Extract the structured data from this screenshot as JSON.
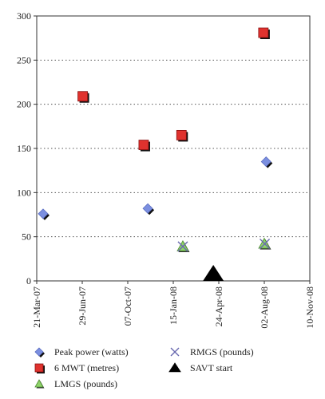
{
  "chart_data": {
    "type": "scatter",
    "title": "",
    "xlabel": "",
    "ylabel": "",
    "ylim": [
      0,
      300
    ],
    "yticks": [
      0,
      50,
      100,
      150,
      200,
      250,
      300
    ],
    "xlim": [
      "2007-03-21",
      "2008-11-10"
    ],
    "xticks": [
      {
        "date": "2007-03-21",
        "label": "21-Mar-07"
      },
      {
        "date": "2007-06-29",
        "label": "29-Jun-07"
      },
      {
        "date": "2007-10-07",
        "label": "07-Oct-07"
      },
      {
        "date": "2008-01-15",
        "label": "15-Jan-08"
      },
      {
        "date": "2008-04-24",
        "label": "24-Apr-08"
      },
      {
        "date": "2008-08-02",
        "label": "02-Aug-08"
      },
      {
        "date": "2008-11-10",
        "label": "10-Nov-08"
      }
    ],
    "grid": "horizontal-dotted",
    "legend_position": "bottom",
    "series": [
      {
        "name": "Peak power (watts)",
        "marker": "diamond",
        "color": "#7b8fe0",
        "points": [
          {
            "x": "2007-04-04",
            "y": 76
          },
          {
            "x": "2007-11-20",
            "y": 82
          },
          {
            "x": "2008-08-06",
            "y": 135
          }
        ]
      },
      {
        "name": "6 MWT (metres)",
        "marker": "square",
        "color": "#e0322e",
        "points": [
          {
            "x": "2007-06-30",
            "y": 209
          },
          {
            "x": "2007-11-11",
            "y": 154
          },
          {
            "x": "2008-02-02",
            "y": 165
          },
          {
            "x": "2008-07-31",
            "y": 281
          }
        ]
      },
      {
        "name": "LMGS (pounds)",
        "marker": "triangle",
        "color": "#8fd46a",
        "points": [
          {
            "x": "2008-02-05",
            "y": 39
          },
          {
            "x": "2008-08-02",
            "y": 42
          }
        ]
      },
      {
        "name": "RMGS (pounds)",
        "marker": "x",
        "color": "#6a6ab0",
        "points": [
          {
            "x": "2008-02-05",
            "y": 39
          },
          {
            "x": "2008-08-03",
            "y": 42
          }
        ]
      },
      {
        "name": "SAVT start",
        "marker": "filled-triangle",
        "color": "#000000",
        "points": [
          {
            "x": "2008-04-12",
            "y": 8
          }
        ]
      }
    ]
  },
  "legend": {
    "items": [
      {
        "label": "Peak power (watts)",
        "marker": "diamond",
        "color": "#7b8fe0"
      },
      {
        "label": "RMGS (pounds)",
        "marker": "x",
        "color": "#6a6ab0"
      },
      {
        "label": "6 MWT (metres)",
        "marker": "square",
        "color": "#e0322e"
      },
      {
        "label": "SAVT start",
        "marker": "filled-triangle",
        "color": "#000000"
      },
      {
        "label": "LMGS (pounds)",
        "marker": "triangle",
        "color": "#8fd46a"
      }
    ]
  }
}
